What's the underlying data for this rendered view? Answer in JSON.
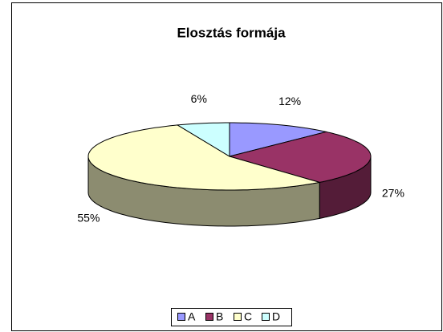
{
  "chart_data": {
    "type": "pie3d",
    "title": "Elosztás formája",
    "categories": [
      "A",
      "B",
      "C",
      "D"
    ],
    "values": [
      12,
      27,
      55,
      6
    ],
    "value_labels": [
      "12%",
      "27%",
      "55%",
      "6%"
    ],
    "colors": [
      "#9999ff",
      "#993366",
      "#ffffcc",
      "#ccffff"
    ],
    "legend": "bottom"
  }
}
